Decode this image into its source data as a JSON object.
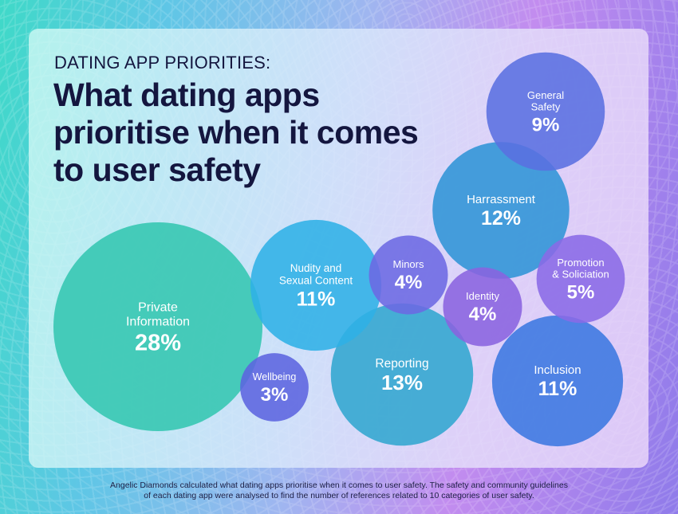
{
  "kicker": "DATING APP PRIORITIES:",
  "title": "What dating apps prioritise when it comes to user safety",
  "footnote": {
    "line1": "Angelic Diamonds calculated what dating apps prioritise when it comes to user safety. The safety and community guidelines",
    "line2": "of each dating app were analysed to find the number of references related to 10 categories of user safety."
  },
  "chart_data": {
    "type": "bubble",
    "value_unit": "%",
    "items": [
      {
        "label": [
          "Private",
          "Information"
        ],
        "value": 28,
        "color": "#33c6b0"
      },
      {
        "label": [
          "Reporting"
        ],
        "value": 13,
        "color": "#31a6cf"
      },
      {
        "label": [
          "Harrassment"
        ],
        "value": 12,
        "color": "#2f94d6"
      },
      {
        "label": [
          "Nudity and",
          "Sexual Content"
        ],
        "value": 11,
        "color": "#2fb0e6"
      },
      {
        "label": [
          "Inclusion"
        ],
        "value": 11,
        "color": "#3b78e0"
      },
      {
        "label": [
          "General",
          "Safety"
        ],
        "value": 9,
        "color": "#5a6fe0"
      },
      {
        "label": [
          "Promotion",
          "& Soliciation"
        ],
        "value": 5,
        "color": "#8a6ae6"
      },
      {
        "label": [
          "Minors"
        ],
        "value": 4,
        "color": "#6c69e3"
      },
      {
        "label": [
          "Identity"
        ],
        "value": 4,
        "color": "#8a63df"
      },
      {
        "label": [
          "Wellbeing"
        ],
        "value": 3,
        "color": "#5c64df"
      }
    ]
  }
}
